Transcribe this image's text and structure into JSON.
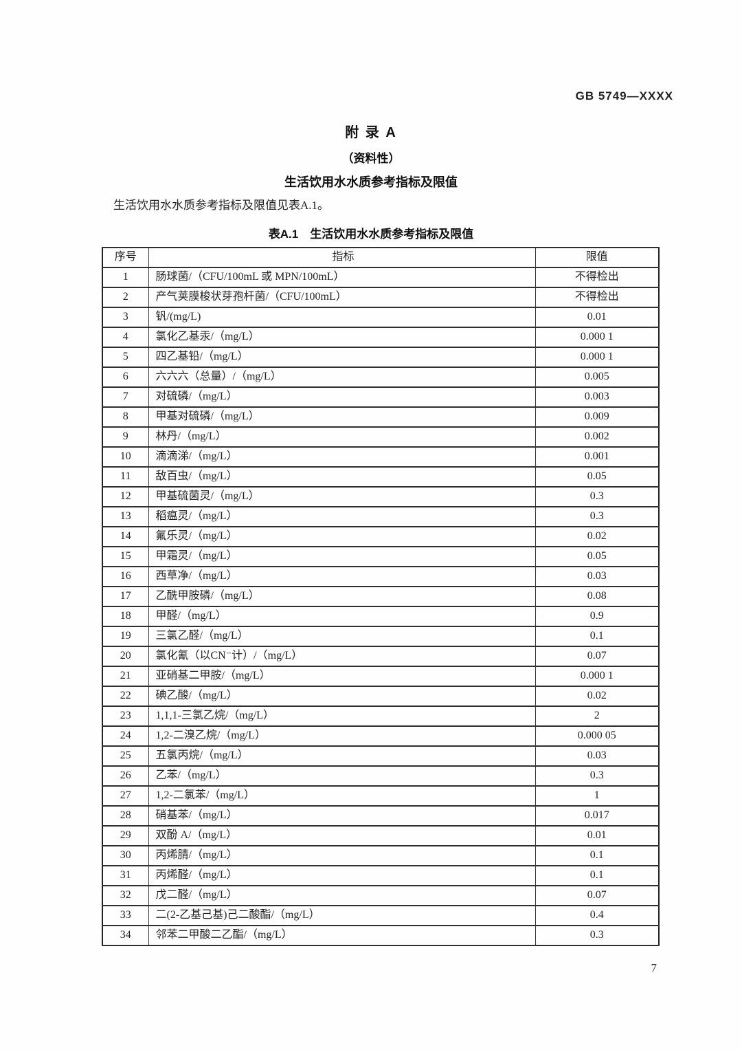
{
  "page": {
    "doc_number": "GB 5749—XXXX",
    "appendix_title": "附  录  A",
    "appendix_subtitle": "（资料性）",
    "appendix_heading": "生活饮用水水质参考指标及限值",
    "intro_text": "生活饮用水水质参考指标及限值见表A.1。",
    "table_caption": "表A.1　生活饮用水水质参考指标及限值",
    "page_number": "7"
  },
  "table": {
    "headers": [
      "序号",
      "指标",
      "限值"
    ],
    "rows": [
      [
        "1",
        "肠球菌/（CFU/100mL 或 MPN/100mL）",
        "不得检出"
      ],
      [
        "2",
        "产气荚膜梭状芽孢杆菌/（CFU/100mL）",
        "不得检出"
      ],
      [
        "3",
        "钒/(mg/L)",
        "0.01"
      ],
      [
        "4",
        "氯化乙基汞/（mg/L）",
        "0.000 1"
      ],
      [
        "5",
        "四乙基铅/（mg/L）",
        "0.000 1"
      ],
      [
        "6",
        "六六六（总量）/（mg/L）",
        "0.005"
      ],
      [
        "7",
        "对硫磷/（mg/L）",
        "0.003"
      ],
      [
        "8",
        "甲基对硫磷/（mg/L）",
        "0.009"
      ],
      [
        "9",
        "林丹/（mg/L）",
        "0.002"
      ],
      [
        "10",
        "滴滴涕/（mg/L）",
        "0.001"
      ],
      [
        "11",
        "敌百虫/（mg/L）",
        "0.05"
      ],
      [
        "12",
        "甲基硫菌灵/（mg/L）",
        "0.3"
      ],
      [
        "13",
        "稻瘟灵/（mg/L）",
        "0.3"
      ],
      [
        "14",
        "氟乐灵/（mg/L）",
        "0.02"
      ],
      [
        "15",
        "甲霜灵/（mg/L）",
        "0.05"
      ],
      [
        "16",
        "西草净/（mg/L）",
        "0.03"
      ],
      [
        "17",
        "乙酰甲胺磷/（mg/L）",
        "0.08"
      ],
      [
        "18",
        "甲醛/（mg/L）",
        "0.9"
      ],
      [
        "19",
        "三氯乙醛/（mg/L）",
        "0.1"
      ],
      [
        "20",
        "氯化氰（以CN⁻计）/（mg/L）",
        "0.07"
      ],
      [
        "21",
        "亚硝基二甲胺/（mg/L）",
        "0.000 1"
      ],
      [
        "22",
        "碘乙酸/（mg/L）",
        "0.02"
      ],
      [
        "23",
        "1,1,1-三氯乙烷/（mg/L）",
        "2"
      ],
      [
        "24",
        "1,2-二溴乙烷/（mg/L）",
        "0.000 05"
      ],
      [
        "25",
        "五氯丙烷/（mg/L）",
        "0.03"
      ],
      [
        "26",
        "乙苯/（mg/L）",
        "0.3"
      ],
      [
        "27",
        "1,2-二氯苯/（mg/L）",
        "1"
      ],
      [
        "28",
        "硝基苯/（mg/L）",
        "0.017"
      ],
      [
        "29",
        "双酚 A/（mg/L）",
        "0.01"
      ],
      [
        "30",
        "丙烯腈/（mg/L）",
        "0.1"
      ],
      [
        "31",
        "丙烯醛/（mg/L）",
        "0.1"
      ],
      [
        "32",
        "戊二醛/（mg/L）",
        "0.07"
      ],
      [
        "33",
        "二(2-乙基己基)己二酸酯/（mg/L）",
        "0.4"
      ],
      [
        "34",
        "邻苯二甲酸二乙酯/（mg/L）",
        "0.3"
      ]
    ]
  }
}
